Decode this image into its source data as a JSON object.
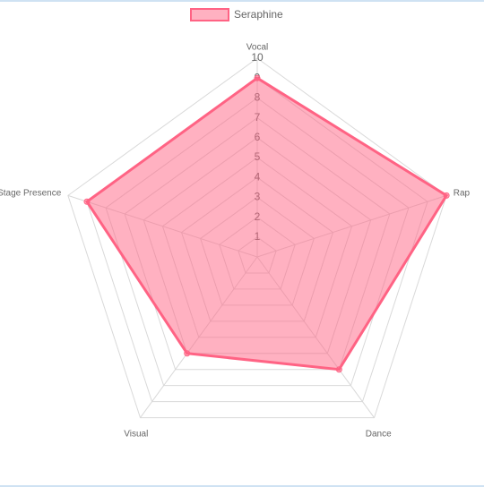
{
  "chart_data": {
    "type": "radar",
    "categories": [
      "Vocal",
      "Rap",
      "Dance",
      "Visual",
      "Stage Presence"
    ],
    "series": [
      {
        "name": "Seraphine",
        "color": "#ff6384",
        "values": [
          9,
          10,
          7,
          6,
          9
        ]
      }
    ],
    "rlim": [
      0,
      10
    ],
    "rticks": [
      1,
      2,
      3,
      4,
      5,
      6,
      7,
      8,
      9,
      10
    ],
    "grid": true,
    "legend": "top"
  }
}
